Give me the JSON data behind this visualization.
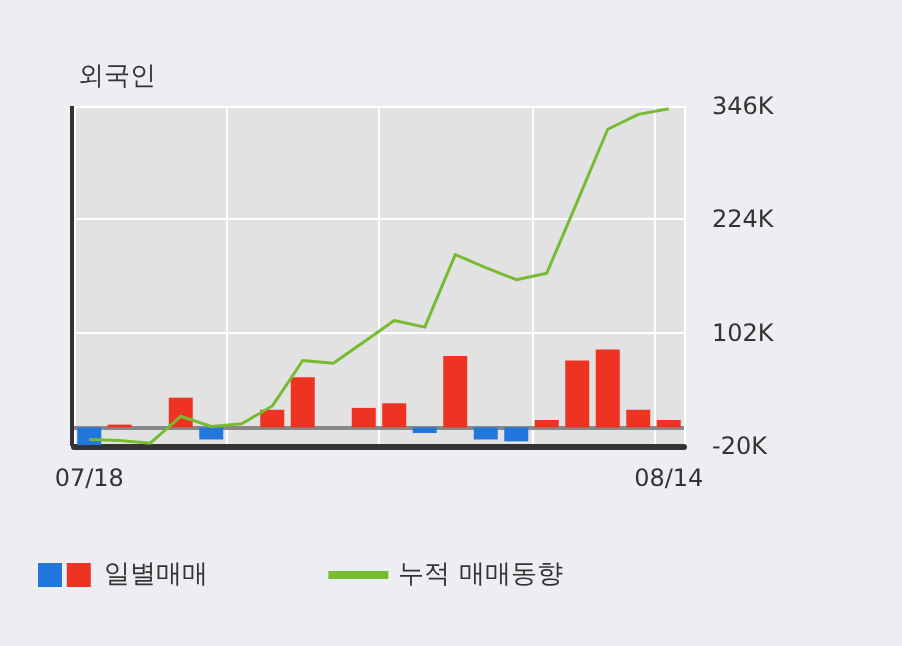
{
  "chart_data": {
    "type": "bar",
    "title": "외국인",
    "categories": [
      "07/18",
      null,
      null,
      null,
      null,
      null,
      null,
      null,
      null,
      null,
      null,
      null,
      null,
      null,
      null,
      null,
      null,
      null,
      null,
      "08/14"
    ],
    "series": [
      {
        "name": "일별매매",
        "colors": [
          "#2277dd",
          "#ee3322",
          "#ee3322",
          "#ee3322",
          "#2277dd",
          "#ee3322",
          "#ee3322",
          "#ee3322",
          "#ee3322",
          "#ee3322",
          "#ee3322",
          "#2277dd",
          "#ee3322",
          "#2277dd",
          "#2277dd",
          "#ee3322",
          "#ee3322",
          "#ee3322",
          "#ee3322",
          "#ee3322"
        ],
        "values": [
          -19000,
          3000,
          0,
          32000,
          -13000,
          0,
          19000,
          54000,
          0,
          21000,
          26000,
          -6000,
          77000,
          -13000,
          -15000,
          8000,
          72000,
          84000,
          19000,
          8000
        ]
      },
      {
        "type": "line",
        "name": "누적 매매동향",
        "color": "#77bb33",
        "values": [
          -13000,
          -14000,
          -17000,
          12000,
          1000,
          4000,
          23000,
          72000,
          69000,
          92000,
          115000,
          108000,
          186000,
          172000,
          159000,
          166000,
          243000,
          321000,
          337000,
          343000
        ]
      }
    ],
    "ylim": [
      -20000,
      346000
    ],
    "yticks": [
      {
        "value": -20000,
        "label": "-20K"
      },
      {
        "value": 102000,
        "label": "102K"
      },
      {
        "value": 224000,
        "label": "224K"
      },
      {
        "value": 346000,
        "label": "346K"
      }
    ],
    "ref_lines": [
      {
        "axis": "y",
        "value": 0,
        "color": "#888888"
      }
    ],
    "grid": true,
    "legend": "bottom left",
    "marker": "none",
    "line_style": "solid"
  }
}
